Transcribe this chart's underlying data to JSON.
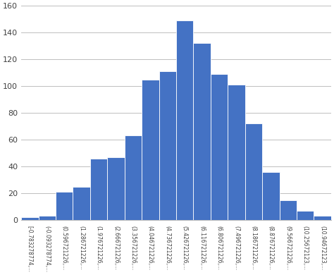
{
  "bar_heights": [
    2,
    3,
    21,
    25,
    46,
    47,
    63,
    105,
    111,
    149,
    132,
    109,
    101,
    72,
    36,
    15,
    7,
    3
  ],
  "labels": [
    "[-0.783278774,...",
    "(-0.093278774,...",
    "(0.596721226,...",
    "(1.286721226,...",
    "(1.976721226,...",
    "(2.666721226,...",
    "(3.356721226,...",
    "(4.046721226,...",
    "(4.736721226,...",
    "(5.426721226,...",
    "(6.116721226,...",
    "(6.806721226,...",
    "(7.496721226,...",
    "(8.186721226,...",
    "(8.876721226,...",
    "(9.566721226,...",
    "(10.25672123,...",
    "(10.94672123,..."
  ],
  "bar_color": "#4472C4",
  "ylim": [
    0,
    160
  ],
  "yticks": [
    0,
    20,
    40,
    60,
    80,
    100,
    120,
    140,
    160
  ],
  "background_color": "#ffffff",
  "grid_color": "#bfbfbf"
}
